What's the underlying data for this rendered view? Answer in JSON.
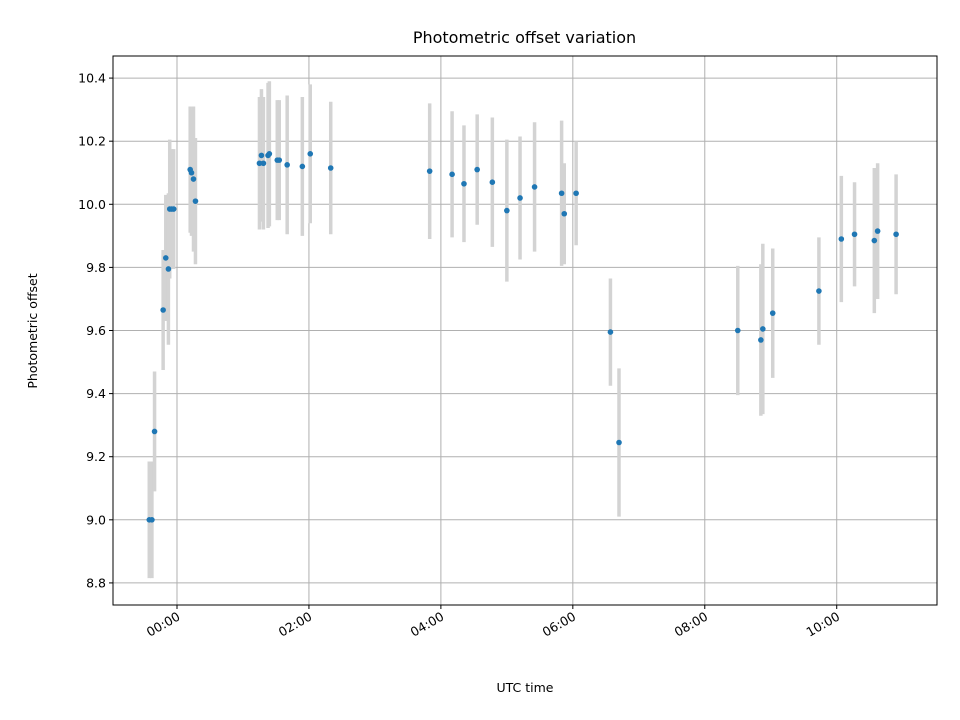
{
  "chart_data": {
    "type": "scatter",
    "title": "Photometric offset variation",
    "xlabel": "UTC time",
    "ylabel": "Photometric offset",
    "x_unit": "hours",
    "xlim": [
      -0.97,
      11.52
    ],
    "ylim": [
      8.73,
      10.47
    ],
    "x_ticks": [
      {
        "value": 0,
        "label": "00:00"
      },
      {
        "value": 2,
        "label": "02:00"
      },
      {
        "value": 4,
        "label": "04:00"
      },
      {
        "value": 6,
        "label": "06:00"
      },
      {
        "value": 8,
        "label": "08:00"
      },
      {
        "value": 10,
        "label": "10:00"
      }
    ],
    "y_ticks": [
      {
        "value": 8.8,
        "label": "8.8"
      },
      {
        "value": 9.0,
        "label": "9.0"
      },
      {
        "value": 9.2,
        "label": "9.2"
      },
      {
        "value": 9.4,
        "label": "9.4"
      },
      {
        "value": 9.6,
        "label": "9.6"
      },
      {
        "value": 9.8,
        "label": "9.8"
      },
      {
        "value": 10.0,
        "label": "10.0"
      },
      {
        "value": 10.2,
        "label": "10.2"
      },
      {
        "value": 10.4,
        "label": "10.4"
      }
    ],
    "grid": true,
    "colors": {
      "point": "#1f77b4",
      "errorbar": "#d3d3d3",
      "grid": "#b0b0b0"
    },
    "points": [
      {
        "x": -0.42,
        "y": 9.0,
        "err": 0.185
      },
      {
        "x": -0.38,
        "y": 9.0,
        "err": 0.185
      },
      {
        "x": -0.34,
        "y": 9.28,
        "err": 0.19
      },
      {
        "x": -0.21,
        "y": 9.665,
        "err": 0.19
      },
      {
        "x": -0.17,
        "y": 9.83,
        "err": 0.2
      },
      {
        "x": -0.13,
        "y": 9.795,
        "err": 0.24
      },
      {
        "x": -0.11,
        "y": 9.985,
        "err": 0.22
      },
      {
        "x": -0.08,
        "y": 9.985,
        "err": 0.19
      },
      {
        "x": -0.05,
        "y": 9.985,
        "err": 0.19
      },
      {
        "x": 0.2,
        "y": 10.11,
        "err": 0.2
      },
      {
        "x": 0.22,
        "y": 10.1,
        "err": 0.2
      },
      {
        "x": 0.25,
        "y": 10.08,
        "err": 0.23
      },
      {
        "x": 0.28,
        "y": 10.01,
        "err": 0.2
      },
      {
        "x": 1.25,
        "y": 10.13,
        "err": 0.21
      },
      {
        "x": 1.28,
        "y": 10.155,
        "err": 0.21
      },
      {
        "x": 1.31,
        "y": 10.13,
        "err": 0.21
      },
      {
        "x": 1.38,
        "y": 10.155,
        "err": 0.23
      },
      {
        "x": 1.4,
        "y": 10.16,
        "err": 0.23
      },
      {
        "x": 1.52,
        "y": 10.14,
        "err": 0.19
      },
      {
        "x": 1.55,
        "y": 10.14,
        "err": 0.19
      },
      {
        "x": 1.67,
        "y": 10.125,
        "err": 0.22
      },
      {
        "x": 1.9,
        "y": 10.12,
        "err": 0.22
      },
      {
        "x": 2.02,
        "y": 10.16,
        "err": 0.22
      },
      {
        "x": 2.33,
        "y": 10.115,
        "err": 0.21
      },
      {
        "x": 3.83,
        "y": 10.105,
        "err": 0.215
      },
      {
        "x": 4.17,
        "y": 10.095,
        "err": 0.2
      },
      {
        "x": 4.35,
        "y": 10.065,
        "err": 0.185
      },
      {
        "x": 4.55,
        "y": 10.11,
        "err": 0.175
      },
      {
        "x": 4.78,
        "y": 10.07,
        "err": 0.205
      },
      {
        "x": 5.0,
        "y": 9.98,
        "err": 0.225
      },
      {
        "x": 5.2,
        "y": 10.02,
        "err": 0.195
      },
      {
        "x": 5.42,
        "y": 10.055,
        "err": 0.205
      },
      {
        "x": 5.83,
        "y": 10.035,
        "err": 0.23
      },
      {
        "x": 5.87,
        "y": 9.97,
        "err": 0.16
      },
      {
        "x": 6.05,
        "y": 10.035,
        "err": 0.165
      },
      {
        "x": 6.57,
        "y": 9.595,
        "err": 0.17
      },
      {
        "x": 6.7,
        "y": 9.245,
        "err": 0.235
      },
      {
        "x": 8.5,
        "y": 9.6,
        "err": 0.205
      },
      {
        "x": 8.85,
        "y": 9.57,
        "err": 0.24
      },
      {
        "x": 8.88,
        "y": 9.605,
        "err": 0.27
      },
      {
        "x": 9.03,
        "y": 9.655,
        "err": 0.205
      },
      {
        "x": 9.73,
        "y": 9.725,
        "err": 0.17
      },
      {
        "x": 10.07,
        "y": 9.89,
        "err": 0.2
      },
      {
        "x": 10.27,
        "y": 9.905,
        "err": 0.165
      },
      {
        "x": 10.57,
        "y": 9.885,
        "err": 0.23
      },
      {
        "x": 10.62,
        "y": 9.915,
        "err": 0.215
      },
      {
        "x": 10.9,
        "y": 9.905,
        "err": 0.19
      }
    ]
  }
}
